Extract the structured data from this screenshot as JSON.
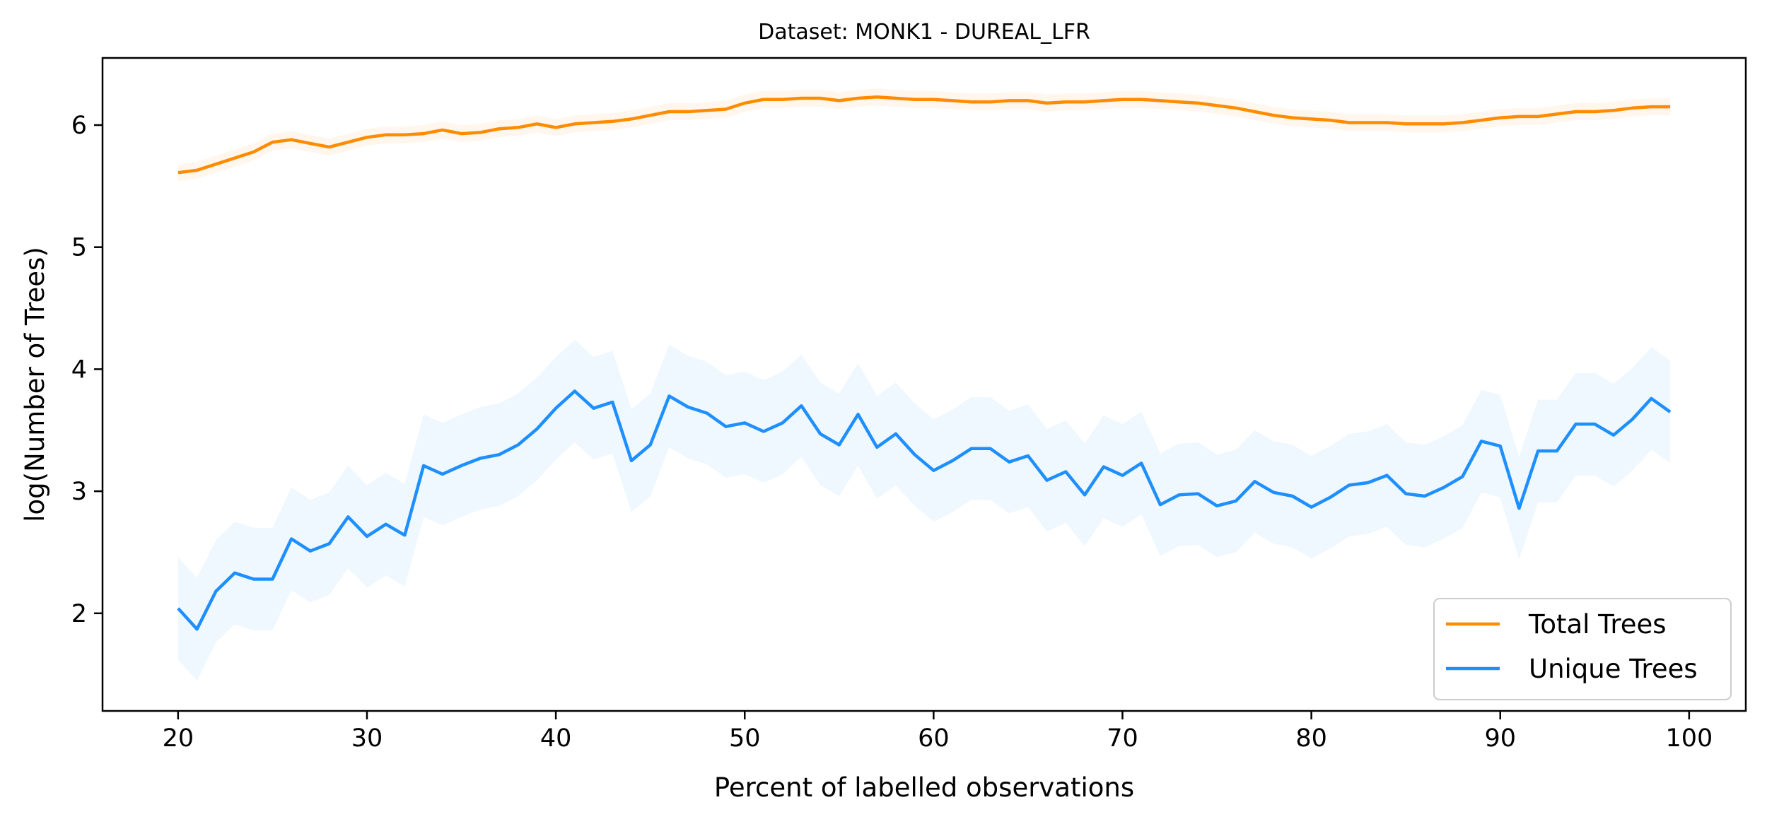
{
  "chart_data": {
    "type": "line",
    "title": "Dataset: MONK1 - DUREAL_LFR",
    "xlabel": "Percent of labelled observations",
    "ylabel": "log(Number of Trees)",
    "xlim": [
      16,
      103
    ],
    "ylim": [
      1.2,
      6.55
    ],
    "xticks": [
      20,
      30,
      40,
      50,
      60,
      70,
      80,
      90,
      100
    ],
    "yticks": [
      2,
      3,
      4,
      5,
      6
    ],
    "grid": false,
    "legend_position": "lower-right",
    "x": [
      20,
      21,
      22,
      23,
      24,
      25,
      26,
      27,
      28,
      29,
      30,
      31,
      32,
      33,
      34,
      35,
      36,
      37,
      38,
      39,
      40,
      41,
      42,
      43,
      44,
      45,
      46,
      47,
      48,
      49,
      50,
      51,
      52,
      53,
      54,
      55,
      56,
      57,
      58,
      59,
      60,
      61,
      62,
      63,
      64,
      65,
      66,
      67,
      68,
      69,
      70,
      71,
      72,
      73,
      74,
      75,
      76,
      77,
      78,
      79,
      80,
      81,
      82,
      83,
      84,
      85,
      86,
      87,
      88,
      89,
      90,
      91,
      92,
      93,
      94,
      95,
      96,
      97,
      98,
      99
    ],
    "series": [
      {
        "name": "Total Trees",
        "color": "#ff8c00",
        "values": [
          5.61,
          5.63,
          5.68,
          5.73,
          5.78,
          5.86,
          5.88,
          5.85,
          5.82,
          5.86,
          5.9,
          5.92,
          5.92,
          5.93,
          5.96,
          5.93,
          5.94,
          5.97,
          5.98,
          6.01,
          5.98,
          6.01,
          6.02,
          6.03,
          6.05,
          6.08,
          6.11,
          6.11,
          6.12,
          6.13,
          6.18,
          6.21,
          6.21,
          6.22,
          6.22,
          6.2,
          6.22,
          6.23,
          6.22,
          6.21,
          6.21,
          6.2,
          6.19,
          6.19,
          6.2,
          6.2,
          6.18,
          6.19,
          6.19,
          6.2,
          6.21,
          6.21,
          6.2,
          6.19,
          6.18,
          6.16,
          6.14,
          6.11,
          6.08,
          6.06,
          6.05,
          6.04,
          6.02,
          6.02,
          6.02,
          6.01,
          6.01,
          6.01,
          6.02,
          6.04,
          6.06,
          6.07,
          6.07,
          6.09,
          6.11,
          6.11,
          6.12,
          6.14,
          6.15,
          6.15
        ],
        "band": 0.07
      },
      {
        "name": "Unique Trees",
        "color": "#1e8fff",
        "values": [
          2.04,
          1.87,
          2.18,
          2.33,
          2.28,
          2.28,
          2.61,
          2.51,
          2.57,
          2.79,
          2.63,
          2.73,
          2.64,
          3.21,
          3.14,
          3.21,
          3.27,
          3.3,
          3.38,
          3.51,
          3.68,
          3.82,
          3.68,
          3.73,
          3.25,
          3.38,
          3.78,
          3.69,
          3.64,
          3.53,
          3.56,
          3.49,
          3.56,
          3.7,
          3.47,
          3.38,
          3.63,
          3.36,
          3.47,
          3.3,
          3.17,
          3.25,
          3.35,
          3.35,
          3.24,
          3.29,
          3.09,
          3.16,
          2.97,
          3.2,
          3.13,
          3.23,
          2.89,
          2.97,
          2.98,
          2.88,
          2.92,
          3.08,
          2.99,
          2.96,
          2.87,
          2.95,
          3.05,
          3.07,
          3.13,
          2.98,
          2.96,
          3.03,
          3.12,
          3.41,
          3.37,
          2.86,
          3.33,
          3.33,
          3.55,
          3.55,
          3.46,
          3.59,
          3.76,
          3.65
        ],
        "band": 0.42
      }
    ]
  }
}
